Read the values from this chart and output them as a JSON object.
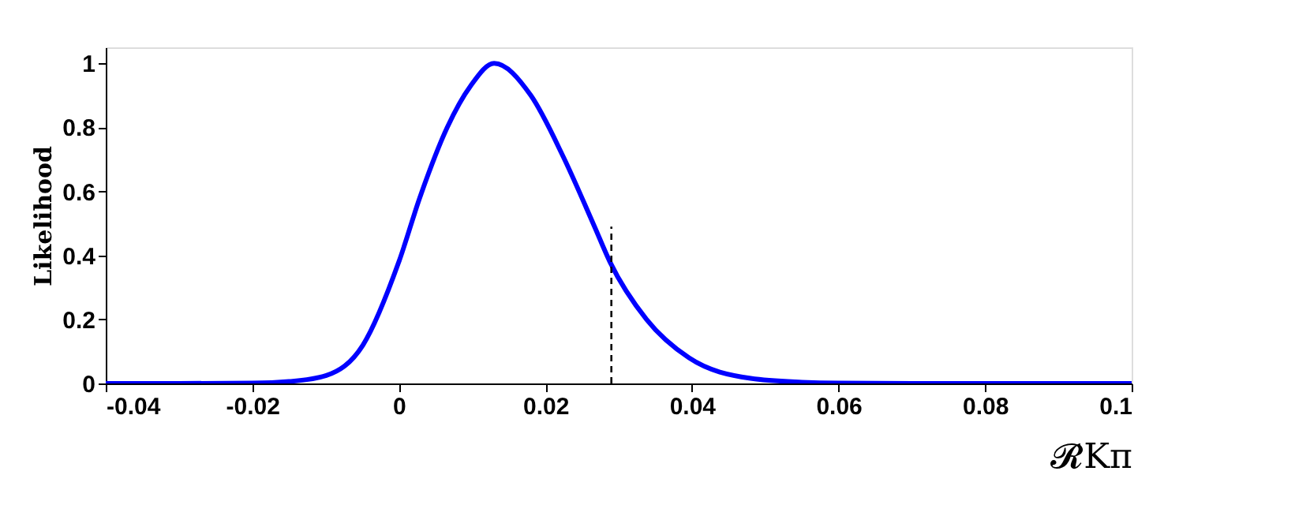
{
  "chart_data": {
    "type": "line",
    "xlabel": "𝓡Kπ",
    "ylabel": "Likelihood",
    "xlim": [
      -0.04,
      0.1
    ],
    "xticks": [
      -0.04,
      -0.02,
      0,
      0.02,
      0.04,
      0.06,
      0.08,
      0.1
    ],
    "ylim": [
      0,
      1.05
    ],
    "yticks": [
      0,
      0.2,
      0.4,
      0.6,
      0.8,
      1
    ],
    "grid": false,
    "series": [
      {
        "color": "#0000ff",
        "line_style": "solid",
        "x": [
          -0.04,
          -0.03,
          -0.02,
          -0.015,
          -0.0099,
          -0.0049,
          0,
          0.003,
          0.0066,
          0.0098,
          0.013,
          0.018,
          0.0224,
          0.0267,
          0.0288,
          0.0338,
          0.0396,
          0.048,
          0.055,
          0.06,
          0.07,
          0.1
        ],
        "values": [
          0,
          0,
          0.001,
          0.006,
          0.025,
          0.12,
          0.38,
          0.59,
          0.8,
          0.93,
          1,
          0.9,
          0.71,
          0.49,
          0.38,
          0.2,
          0.08,
          0.016,
          0.004,
          0.001,
          0,
          0
        ]
      },
      {
        "color": "#000000",
        "line_style": "dashed",
        "x": [
          0.029,
          0.029
        ],
        "values": [
          0,
          0.49
        ]
      }
    ]
  }
}
